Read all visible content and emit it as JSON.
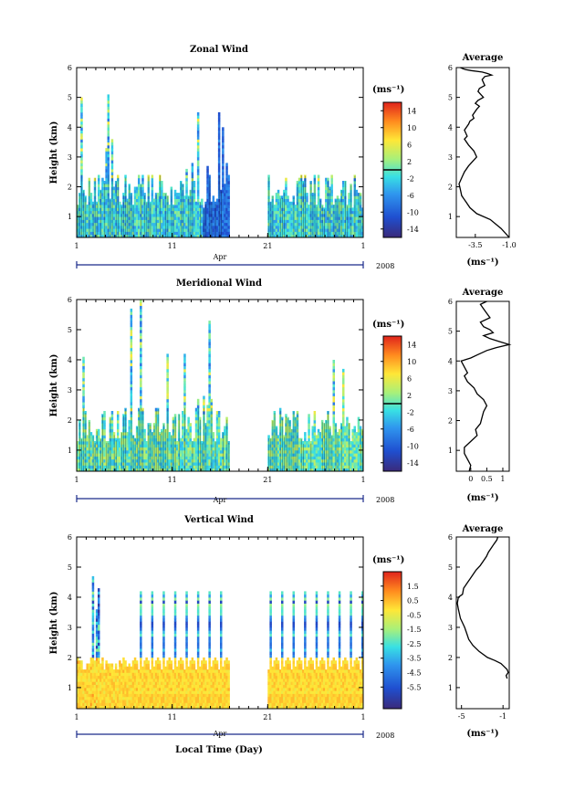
{
  "figure": {
    "xlabel": "Local Time (Day)",
    "month": "Apr",
    "year": "2008",
    "ylabel": "Height (km)",
    "unit_label": "(ms⁻¹)",
    "avg_title": "Average"
  },
  "chart_data": [
    {
      "type": "heatmap",
      "title": "Zonal Wind",
      "xlabel": "Local Time (Day)",
      "ylabel": "Height (km)",
      "x_ticks": [
        "1",
        "11",
        "21",
        "1"
      ],
      "y_ticks": [
        "1",
        "2",
        "3",
        "4",
        "5",
        "6"
      ],
      "xlim": [
        1,
        31
      ],
      "ylim": [
        0.3,
        6
      ],
      "data_gap_days": [
        17,
        21
      ],
      "colorbar": {
        "label": "(ms⁻¹)",
        "range": [
          -16,
          16
        ],
        "ticks": [
          "14",
          "10",
          "6",
          "2",
          "-2",
          "-6",
          "-10",
          "-14"
        ],
        "tick_values": [
          14,
          10,
          6,
          2,
          -2,
          -6,
          -10,
          -14
        ]
      },
      "dominant_range_below_2km": [
        -6,
        2
      ]
    },
    {
      "type": "line",
      "title": "Average",
      "xlabel": "(ms⁻¹)",
      "x_ticks": [
        "-3.5",
        "-1.0"
      ],
      "xlim": [
        -4.9,
        -1.0
      ],
      "y_ticks": [
        "1",
        "2",
        "3",
        "4",
        "5",
        "6"
      ],
      "ylim": [
        0.3,
        6
      ],
      "x": [
        -1.0,
        -1.6,
        -2.4,
        -3.4,
        -3.9,
        -4.2,
        -4.5,
        -4.6,
        -4.7,
        -4.5,
        -4.3,
        -4.0,
        -3.6,
        -3.4,
        -3.6,
        -4.0,
        -4.3,
        -4.1,
        -4.3,
        -4.0,
        -3.9,
        -3.6,
        -3.7,
        -3.4,
        -3.2,
        -3.5,
        -3.3,
        -2.9,
        -3.1,
        -3.3,
        -3.2,
        -2.8,
        -2.9,
        -3.0,
        -2.8,
        -2.3,
        -2.6,
        -3.0,
        -3.8,
        -4.2,
        -4.4,
        -4.6
      ],
      "y": [
        0.3,
        0.6,
        0.9,
        1.1,
        1.3,
        1.5,
        1.7,
        1.9,
        2.1,
        2.3,
        2.5,
        2.7,
        2.9,
        3.0,
        3.2,
        3.4,
        3.6,
        3.7,
        3.9,
        4.1,
        4.2,
        4.3,
        4.4,
        4.6,
        4.7,
        4.8,
        4.9,
        5.0,
        5.1,
        5.2,
        5.3,
        5.4,
        5.5,
        5.6,
        5.7,
        5.75,
        5.8,
        5.85,
        5.9,
        5.93,
        5.96,
        6.0
      ]
    },
    {
      "type": "heatmap",
      "title": "Meridional Wind",
      "xlabel": "Local Time (Day)",
      "ylabel": "Height (km)",
      "x_ticks": [
        "1",
        "11",
        "21",
        "1"
      ],
      "y_ticks": [
        "1",
        "2",
        "3",
        "4",
        "5",
        "6"
      ],
      "xlim": [
        1,
        31
      ],
      "ylim": [
        0.3,
        6
      ],
      "data_gap_days": [
        17,
        21
      ],
      "colorbar": {
        "label": "(ms⁻¹)",
        "range": [
          -16,
          16
        ],
        "ticks": [
          "14",
          "10",
          "6",
          "2",
          "-2",
          "-6",
          "-10",
          "-14"
        ],
        "tick_values": [
          14,
          10,
          6,
          2,
          -2,
          -6,
          -10,
          -14
        ]
      },
      "dominant_range_below_2km": [
        -4,
        4
      ]
    },
    {
      "type": "line",
      "title": "Average",
      "xlabel": "(ms⁻¹)",
      "x_ticks": [
        "0",
        "0.5",
        "1"
      ],
      "xlim": [
        -0.45,
        1.2
      ],
      "y_ticks": [
        "1",
        "2",
        "3",
        "4",
        "5",
        "6"
      ],
      "ylim": [
        0.3,
        6
      ],
      "x": [
        -0.05,
        0.0,
        -0.1,
        -0.2,
        -0.2,
        0.0,
        0.2,
        0.15,
        0.3,
        0.35,
        0.4,
        0.5,
        0.4,
        0.2,
        0.1,
        -0.1,
        -0.2,
        -0.1,
        -0.2,
        -0.3,
        0.0,
        0.2,
        0.5,
        0.8,
        1.2,
        0.9,
        0.6,
        0.4,
        0.7,
        0.6,
        0.4,
        0.3,
        0.6,
        0.5,
        0.4,
        0.3,
        0.5
      ],
      "y": [
        0.3,
        0.5,
        0.7,
        0.9,
        1.1,
        1.3,
        1.5,
        1.7,
        1.9,
        2.1,
        2.3,
        2.5,
        2.7,
        2.9,
        3.1,
        3.3,
        3.5,
        3.6,
        3.8,
        4.0,
        4.1,
        4.2,
        4.35,
        4.45,
        4.55,
        4.65,
        4.75,
        4.85,
        4.95,
        5.05,
        5.15,
        5.3,
        5.45,
        5.6,
        5.75,
        5.9,
        6.0
      ]
    },
    {
      "type": "heatmap",
      "title": "Vertical Wind",
      "xlabel": "Local Time (Day)",
      "ylabel": "Height (km)",
      "x_ticks": [
        "1",
        "11",
        "21",
        "1"
      ],
      "y_ticks": [
        "1",
        "2",
        "3",
        "4",
        "5",
        "6"
      ],
      "xlim": [
        1,
        31
      ],
      "ylim": [
        0.3,
        6
      ],
      "data_gap_days": [
        17,
        21
      ],
      "colorbar": {
        "label": "(ms⁻¹)",
        "range": [
          -7,
          2.5
        ],
        "ticks": [
          "1.5",
          "0.5",
          "-0.5",
          "-1.5",
          "-2.5",
          "-3.5",
          "-4.5",
          "-5.5"
        ],
        "tick_values": [
          1.5,
          0.5,
          -0.5,
          -1.5,
          -2.5,
          -3.5,
          -4.5,
          -5.5
        ]
      },
      "dominant_range_below_2km": [
        -0.5,
        0.5
      ]
    },
    {
      "type": "line",
      "title": "Average",
      "xlabel": "(ms⁻¹)",
      "x_ticks": [
        "-5",
        "-1"
      ],
      "xlim": [
        -5.5,
        -0.4
      ],
      "y_ticks": [
        "1",
        "2",
        "3",
        "4",
        "5",
        "6"
      ],
      "ylim": [
        0.3,
        6
      ],
      "x": [
        -0.6,
        -0.7,
        -0.5,
        -0.6,
        -0.9,
        -1.2,
        -1.8,
        -2.5,
        -3.3,
        -3.9,
        -4.3,
        -4.5,
        -4.7,
        -5.1,
        -5.3,
        -5.4,
        -5.3,
        -4.9,
        -4.8,
        -4.5,
        -4.2,
        -3.9,
        -3.6,
        -3.2,
        -2.9,
        -2.6,
        -2.4,
        -2.1,
        -1.9,
        -1.6,
        -1.5
      ],
      "y": [
        1.3,
        1.4,
        1.5,
        1.6,
        1.7,
        1.8,
        1.9,
        2.0,
        2.2,
        2.4,
        2.6,
        2.8,
        3.0,
        3.3,
        3.6,
        3.8,
        4.0,
        4.1,
        4.3,
        4.45,
        4.6,
        4.75,
        4.9,
        5.05,
        5.2,
        5.35,
        5.5,
        5.65,
        5.75,
        5.9,
        6.0
      ]
    }
  ]
}
